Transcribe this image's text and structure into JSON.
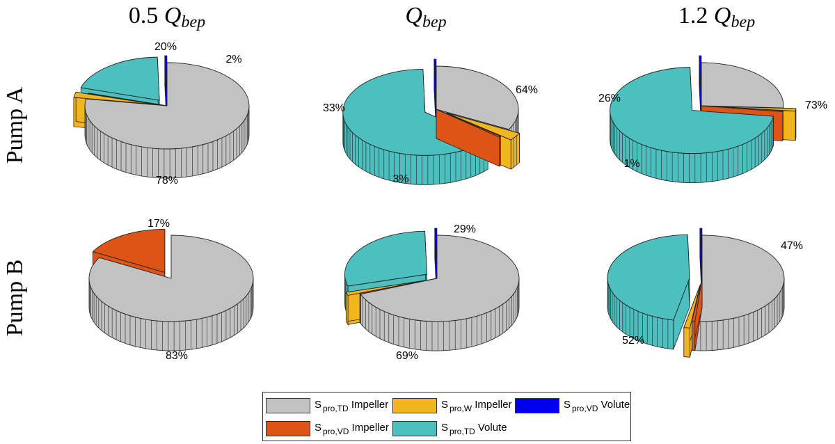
{
  "column_titles": [
    {
      "prefix": "0.5 ",
      "var": "Q",
      "sub": "bep"
    },
    {
      "prefix": "",
      "var": "Q",
      "sub": "bep"
    },
    {
      "prefix": "1.2 ",
      "var": "Q",
      "sub": "bep"
    }
  ],
  "row_titles": [
    "Pump A",
    "Pump B"
  ],
  "legend": [
    {
      "symbol": "S",
      "sub": "pro,TD",
      "text": "Impeller",
      "color": "#c2c2c2"
    },
    {
      "symbol": "S",
      "sub": "pro,W",
      "text": "Impeller",
      "color": "#f0b51f"
    },
    {
      "symbol": "S",
      "sub": "pro,VD",
      "text": "Volute",
      "color": "#0000ee"
    },
    {
      "symbol": "S",
      "sub": "pro,VD",
      "text": "Impeller",
      "color": "#dc5416"
    },
    {
      "symbol": "S",
      "sub": "pro,TD",
      "text": "Volute",
      "color": "#4dbfbf"
    }
  ],
  "chart_data": [
    {
      "type": "pie",
      "row": "Pump A",
      "column": "0.5 Qbep",
      "slices": [
        {
          "legend": 0,
          "value": 0.78,
          "label": "78%",
          "explode": false
        },
        {
          "legend": 1,
          "value": 0.02,
          "label": "2%",
          "explode": true
        },
        {
          "legend": 3,
          "value": 0.002,
          "label": "",
          "explode": false
        },
        {
          "legend": 4,
          "value": 0.2,
          "label": "20%",
          "explode": true
        },
        {
          "legend": 2,
          "value": 0.004,
          "label": "",
          "explode": true
        }
      ]
    },
    {
      "type": "pie",
      "row": "Pump A",
      "column": "Qbep",
      "slices": [
        {
          "legend": 0,
          "value": 0.33,
          "label": "33%",
          "explode": false
        },
        {
          "legend": 1,
          "value": 0.03,
          "label": "3%",
          "explode": true
        },
        {
          "legend": 3,
          "value": 0.004,
          "label": "",
          "explode": false
        },
        {
          "legend": 4,
          "value": 0.64,
          "label": "64%",
          "explode": true
        },
        {
          "legend": 2,
          "value": 0.004,
          "label": "",
          "explode": true
        }
      ]
    },
    {
      "type": "pie",
      "row": "Pump A",
      "column": "1.2 Qbep",
      "slices": [
        {
          "legend": 0,
          "value": 0.26,
          "label": "26%",
          "explode": false
        },
        {
          "legend": 1,
          "value": 0.01,
          "label": "1%",
          "explode": true
        },
        {
          "legend": 3,
          "value": 0.004,
          "label": "",
          "explode": false
        },
        {
          "legend": 4,
          "value": 0.73,
          "label": "73%",
          "explode": true
        },
        {
          "legend": 2,
          "value": 0.004,
          "label": "",
          "explode": true
        }
      ]
    },
    {
      "type": "pie",
      "row": "Pump B",
      "column": "0.5 Qbep",
      "slices": [
        {
          "legend": 0,
          "value": 0.83,
          "label": "83%",
          "explode": false
        },
        {
          "legend": 3,
          "value": 0.17,
          "label": "17%",
          "explode": true
        }
      ]
    },
    {
      "type": "pie",
      "row": "Pump B",
      "column": "Qbep",
      "slices": [
        {
          "legend": 0,
          "value": 0.69,
          "label": "69%",
          "explode": false
        },
        {
          "legend": 3,
          "value": 0.004,
          "label": "",
          "explode": false
        },
        {
          "legend": 1,
          "value": 0.012,
          "label": "",
          "explode": true
        },
        {
          "legend": 4,
          "value": 0.29,
          "label": "29%",
          "explode": true
        },
        {
          "legend": 2,
          "value": 0.004,
          "label": "",
          "explode": true
        }
      ]
    },
    {
      "type": "pie",
      "row": "Pump B",
      "column": "1.2 Qbep",
      "slices": [
        {
          "legend": 0,
          "value": 0.52,
          "label": "52%",
          "explode": false
        },
        {
          "legend": 3,
          "value": 0.006,
          "label": "",
          "explode": false
        },
        {
          "legend": 1,
          "value": 0.012,
          "label": "",
          "explode": true
        },
        {
          "legend": 4,
          "value": 0.47,
          "label": "47%",
          "explode": true
        },
        {
          "legend": 2,
          "value": 0.004,
          "label": "",
          "explode": true
        }
      ]
    }
  ]
}
